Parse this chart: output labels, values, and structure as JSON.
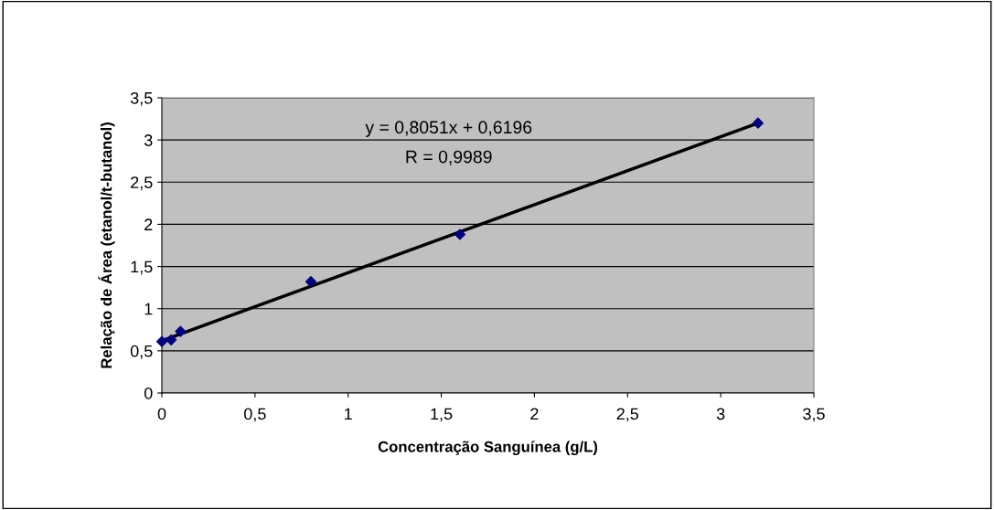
{
  "chart_data": {
    "type": "scatter",
    "xlabel": "Concentração Sanguínea (g/L)",
    "ylabel": "Relação de Área (etanol/t-butanol)",
    "annotations": [
      "y = 0,8051x + 0,6196",
      "R = 0,9989"
    ],
    "series": [
      {
        "color": "#000080",
        "marker": "diamond",
        "x": [
          0,
          0.05,
          0.1,
          0.8,
          1.6,
          3.2
        ],
        "values": [
          0.61,
          0.63,
          0.73,
          1.32,
          1.88,
          3.2
        ]
      },
      {
        "type": "line",
        "color": "#000000",
        "marker": "none",
        "line_style": "solid",
        "x": [
          0,
          3.2
        ],
        "values": [
          0.62,
          3.2
        ]
      }
    ],
    "xlim": [
      0,
      3.5
    ],
    "ylim": [
      0,
      3.5
    ],
    "xticks": [
      0,
      {
        "value": 0.5,
        "label": "0,5"
      },
      1,
      {
        "value": 1.5,
        "label": "1,5"
      },
      2,
      {
        "value": 2.5,
        "label": "2,5"
      },
      3,
      {
        "value": 3.5,
        "label": "3,5"
      }
    ],
    "yticks": [
      0,
      {
        "value": 0.5,
        "label": "0,5"
      },
      1,
      {
        "value": 1.5,
        "label": "1,5"
      },
      2,
      {
        "value": 2.5,
        "label": "2,5"
      },
      3,
      {
        "value": 3.5,
        "label": "3,5"
      }
    ],
    "grid": "y",
    "legend": false
  }
}
